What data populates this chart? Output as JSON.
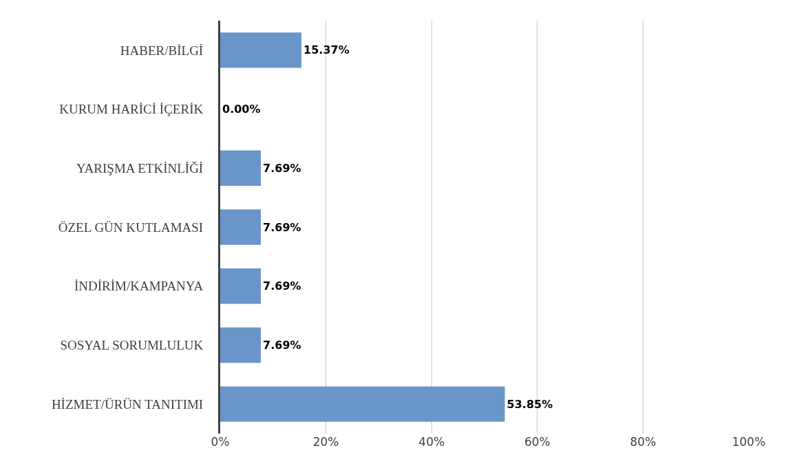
{
  "chart_data": {
    "type": "bar",
    "orientation": "horizontal",
    "categories": [
      "HABER/BİLGİ",
      "KURUM HARİCİ İÇERİK",
      "YARIŞMA ETKİNLİĞİ",
      "ÖZEL GÜN KUTLAMASI",
      "İNDİRİM/KAMPANYA",
      "SOSYAL SORUMLULUK",
      "HİZMET/ÜRÜN TANITIMI"
    ],
    "values": [
      15.37,
      0,
      7.69,
      7.69,
      7.69,
      7.69,
      53.85
    ],
    "value_labels": [
      "15.37%",
      "0.00%",
      "7.69%",
      "7.69%",
      "7.69%",
      "7.69%",
      "53.85%"
    ],
    "color": "#6a95c9",
    "xlim": [
      0,
      100
    ],
    "xticks": [
      {
        "value": 0,
        "label": "0%"
      },
      {
        "value": 20,
        "label": "20%"
      },
      {
        "value": 40,
        "label": "40%"
      },
      {
        "value": 60,
        "label": "60%"
      },
      {
        "value": 80,
        "label": "80%"
      },
      {
        "value": 100,
        "label": "100%"
      }
    ],
    "grid": "x"
  }
}
